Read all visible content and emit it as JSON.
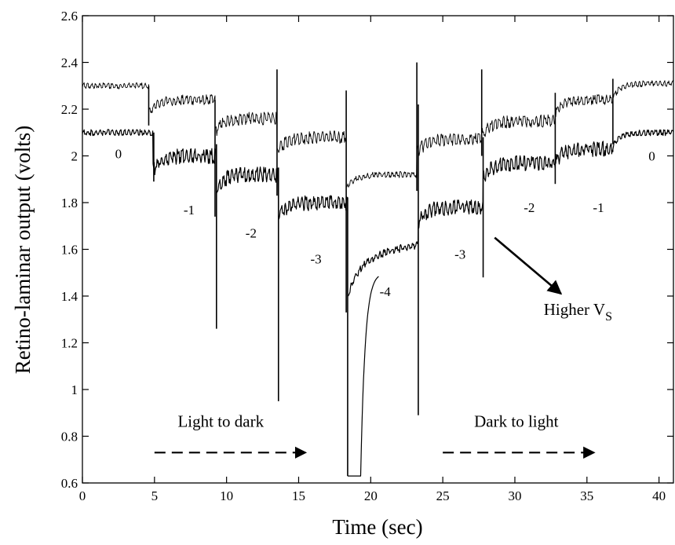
{
  "chart_data": {
    "type": "line",
    "title": "",
    "xlabel": "Time (sec)",
    "ylabel": "Retino-laminar output (volts)",
    "xlim": [
      0,
      41
    ],
    "ylim": [
      0.6,
      2.6
    ],
    "xticks": [
      0,
      5,
      10,
      15,
      20,
      25,
      30,
      35,
      40
    ],
    "xtick_labels": [
      "0",
      "5",
      "10",
      "15",
      "20",
      "25",
      "30",
      "35",
      "40"
    ],
    "yticks": [
      0.6,
      0.8,
      1,
      1.2,
      1.4,
      1.6,
      1.8,
      2,
      2.2,
      2.4,
      2.6
    ],
    "ytick_labels": [
      "0.6",
      "0.8",
      "1",
      "1.2",
      "1.4",
      "1.6",
      "1.8",
      "2",
      "2.2",
      "2.4",
      "2.6"
    ],
    "grid": false,
    "series": [
      {
        "segments": [
          {
            "t0": 0.0,
            "t1": 4.6,
            "level": 2.3,
            "noise": 0.012
          },
          {
            "t0": 4.6,
            "t1": 9.2,
            "level": 2.24,
            "noise": 0.02
          },
          {
            "t0": 9.2,
            "t1": 13.5,
            "level": 2.16,
            "noise": 0.025
          },
          {
            "t0": 13.5,
            "t1": 18.3,
            "level": 2.08,
            "noise": 0.025
          },
          {
            "t0": 18.3,
            "t1": 23.2,
            "level": 1.92,
            "noise": 0.012
          },
          {
            "t0": 23.2,
            "t1": 27.7,
            "level": 2.07,
            "noise": 0.025
          },
          {
            "t0": 27.7,
            "t1": 32.8,
            "level": 2.15,
            "noise": 0.025
          },
          {
            "t0": 32.8,
            "t1": 36.8,
            "level": 2.24,
            "noise": 0.02
          },
          {
            "t0": 36.8,
            "t1": 41.0,
            "level": 2.31,
            "noise": 0.012
          }
        ]
      },
      {
        "segments": [
          {
            "t0": 0.0,
            "t1": 4.9,
            "level": 2.1,
            "noise": 0.012
          },
          {
            "t0": 4.9,
            "t1": 9.3,
            "level": 2.0,
            "noise": 0.03
          },
          {
            "t0": 9.3,
            "t1": 13.6,
            "level": 1.92,
            "noise": 0.03
          },
          {
            "t0": 13.6,
            "t1": 18.4,
            "level": 1.8,
            "noise": 0.03
          },
          {
            "t0": 18.4,
            "t1": 23.3,
            "level": 1.58,
            "noise": 0.015
          },
          {
            "t0": 23.3,
            "t1": 27.8,
            "level": 1.78,
            "noise": 0.03
          },
          {
            "t0": 27.8,
            "t1": 32.8,
            "level": 1.97,
            "noise": 0.03
          },
          {
            "t0": 32.8,
            "t1": 36.8,
            "level": 2.03,
            "noise": 0.03
          },
          {
            "t0": 36.8,
            "t1": 41.0,
            "level": 2.1,
            "noise": 0.012
          }
        ]
      }
    ],
    "transients": [
      {
        "t": 4.6,
        "min": 2.13,
        "max": 2.3
      },
      {
        "t": 4.95,
        "min": 1.89,
        "max": 2.1
      },
      {
        "t": 9.2,
        "min": 1.74,
        "max": 2.24
      },
      {
        "t": 9.3,
        "min": 1.26,
        "max": 2.05
      },
      {
        "t": 13.5,
        "min": 1.83,
        "max": 2.37
      },
      {
        "t": 13.6,
        "min": 0.95,
        "max": 1.95
      },
      {
        "t": 18.3,
        "min": 1.33,
        "max": 2.28
      },
      {
        "t": 18.4,
        "min": 0.63,
        "max": 1.82
      },
      {
        "t": 23.2,
        "min": 1.85,
        "max": 2.4
      },
      {
        "t": 23.3,
        "min": 0.89,
        "max": 2.22
      },
      {
        "t": 27.7,
        "min": 2.0,
        "max": 2.37
      },
      {
        "t": 27.8,
        "min": 1.48,
        "max": 2.08
      },
      {
        "t": 32.8,
        "min": 1.88,
        "max": 2.27
      },
      {
        "t": 36.8,
        "min": 2.05,
        "max": 2.33
      }
    ],
    "saturation": {
      "t0": 18.5,
      "t1": 19.3,
      "level": 0.63
    },
    "level_labels": [
      {
        "text": "0",
        "x": 2.5,
        "y": 1.99
      },
      {
        "text": "-1",
        "x": 7.4,
        "y": 1.75
      },
      {
        "text": "-2",
        "x": 11.7,
        "y": 1.65
      },
      {
        "text": "-3",
        "x": 16.2,
        "y": 1.54
      },
      {
        "text": "-4",
        "x": 21.0,
        "y": 1.4
      },
      {
        "text": "-3",
        "x": 26.2,
        "y": 1.56
      },
      {
        "text": "-2",
        "x": 31.0,
        "y": 1.76
      },
      {
        "text": "-1",
        "x": 35.8,
        "y": 1.76
      },
      {
        "text": "0",
        "x": 39.5,
        "y": 1.98
      }
    ],
    "annotations": {
      "light_to_dark": {
        "text": "Light to dark",
        "x": 9.6,
        "y": 0.84,
        "arrow_x": [
          5.0,
          15.5
        ],
        "arrow_y": 0.73
      },
      "dark_to_light": {
        "text": "Dark to light",
        "x": 30.1,
        "y": 0.84,
        "arrow_x": [
          25.0,
          35.5
        ],
        "arrow_y": 0.73
      },
      "higher_vs": {
        "text_main": "Higher V",
        "text_sub": "S",
        "x": 32.0,
        "y": 1.32,
        "arrow_from": [
          28.6,
          1.65
        ],
        "arrow_to": [
          33.2,
          1.41
        ]
      }
    }
  }
}
